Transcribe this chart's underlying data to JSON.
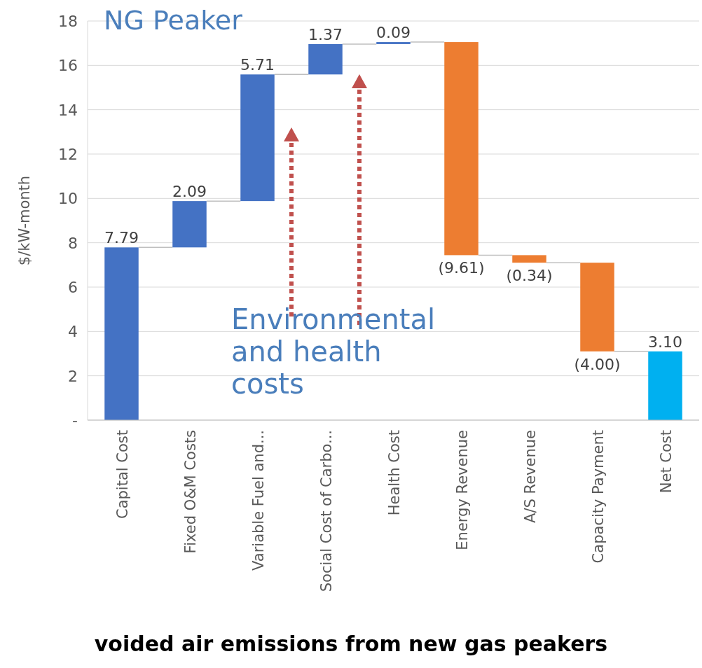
{
  "chart_data": {
    "type": "bar",
    "title": "voided air emissions from new gas peakers",
    "ylabel": "$/kW-month",
    "categories": [
      "Capital Cost",
      "Fixed O&M Costs",
      "Variable Fuel and...",
      "Social Cost of Carbo...",
      "Health Cost",
      "Energy Revenue",
      "A/S Revenue",
      "Capacity Payment",
      "Net Cost"
    ],
    "values": [
      7.79,
      2.09,
      5.71,
      1.37,
      0.09,
      -9.61,
      -0.34,
      -4.0,
      3.1
    ],
    "base": [
      0,
      7.79,
      9.88,
      15.59,
      16.96,
      17.05,
      7.44,
      7.1,
      0
    ],
    "colors": [
      "#4472c4",
      "#4472c4",
      "#4472c4",
      "#4472c4",
      "#4472c4",
      "#ed7d31",
      "#ed7d31",
      "#ed7d31",
      "#00b0f0"
    ],
    "value_labels": [
      "7.79",
      "2.09",
      "5.71",
      "1.37",
      "0.09",
      "(9.61)",
      "(0.34)",
      "(4.00)",
      "3.10"
    ],
    "ylim": [
      0,
      18
    ],
    "yticks": [
      {
        "value": 0,
        "label": "-"
      },
      2,
      4,
      6,
      8,
      10,
      12,
      14,
      16,
      18
    ],
    "grid": "y",
    "annotations": [
      "NG Peaker",
      "Environmental and health costs"
    ]
  }
}
